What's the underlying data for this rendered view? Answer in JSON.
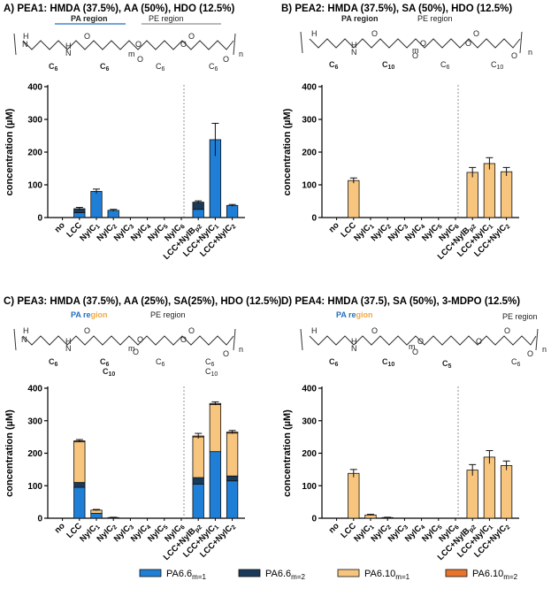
{
  "colors": {
    "PA6.6_m1": "#1f7fd6",
    "PA6.6_m2": "#1a3a5a",
    "PA6.10_m1": "#f7c57d",
    "PA6.10_m2": "#e9732b",
    "blue_text": "#1f6fbf",
    "orange_text": "#f2a840"
  },
  "legend": {
    "items": [
      {
        "key": "PA6.6_m1",
        "base": "PA6.6",
        "sub": "m=1"
      },
      {
        "key": "PA6.6_m2",
        "base": "PA6.6",
        "sub": "m=2"
      },
      {
        "key": "PA6.10_m1",
        "base": "PA6.10",
        "sub": "m=1"
      },
      {
        "key": "PA6.10_m2",
        "base": "PA6.10",
        "sub": "m=2"
      }
    ]
  },
  "category_labels": [
    {
      "base": "no"
    },
    {
      "base": "LCC"
    },
    {
      "base": "NylC",
      "sub": "1"
    },
    {
      "base": "NylC",
      "sub": "2"
    },
    {
      "base": "NylC",
      "sub": "3"
    },
    {
      "base": "NylC",
      "sub": "4"
    },
    {
      "base": "NylC",
      "sub": "5"
    },
    {
      "base": "NylC",
      "sub": "6"
    },
    {
      "base": "LCC+NylB",
      "sub": "p2"
    },
    {
      "base": "LCC+NylC",
      "sub": "1"
    },
    {
      "base": "LCC+NylC",
      "sub": "2"
    }
  ],
  "chart_data": [
    {
      "type": "bar",
      "stacked": true,
      "title": "A) PEA1: HMDA (37.5%), AA (50%), HDO (12.5%)",
      "structure": {
        "region_left": "PA region",
        "region_left_color": "blue",
        "region_right": "PE region",
        "labels": [
          "C6",
          "C6",
          "C6",
          "C6",
          "m",
          "n"
        ]
      },
      "ylabel": "concentration (µM)",
      "ylim": [
        0,
        400
      ],
      "yticks": [
        0,
        100,
        200,
        300,
        400
      ],
      "categories": [
        "no",
        "LCC",
        "NylC1",
        "NylC2",
        "NylC3",
        "NylC4",
        "NylC5",
        "NylC6",
        "LCC+NylBp2",
        "LCC+NylC1",
        "LCC+NylC2"
      ],
      "series": [
        {
          "name": "PA6.6m=1",
          "key": "PA6.6_m1",
          "values": [
            0,
            15,
            80,
            22,
            0,
            0,
            0,
            0,
            25,
            238,
            37
          ]
        },
        {
          "name": "PA6.6m=2",
          "key": "PA6.6_m2",
          "values": [
            0,
            12,
            0,
            0,
            0,
            0,
            0,
            0,
            22,
            0,
            0
          ]
        },
        {
          "name": "PA6.10m=1",
          "key": "PA6.10_m1",
          "values": [
            0,
            0,
            0,
            0,
            0,
            0,
            0,
            0,
            0,
            0,
            0
          ]
        },
        {
          "name": "PA6.10m=2",
          "key": "PA6.10_m2",
          "values": [
            0,
            0,
            0,
            0,
            0,
            0,
            0,
            0,
            0,
            0,
            0
          ]
        }
      ],
      "errors": [
        0,
        4,
        7,
        3,
        0,
        0,
        0,
        0,
        4,
        50,
        3
      ],
      "divider_after": 7
    },
    {
      "type": "bar",
      "stacked": true,
      "title": "B) PEA2: HMDA (37.5%), SA (50%), HDO (12.5%)",
      "structure": {
        "region_left": "PA region",
        "region_left_color": "orange",
        "region_right": "PE region",
        "labels": [
          "C6",
          "C10",
          "C6",
          "C10",
          "m",
          "n"
        ]
      },
      "ylabel": "concentration (µM)",
      "ylim": [
        0,
        400
      ],
      "yticks": [
        0,
        100,
        200,
        300,
        400
      ],
      "categories": [
        "no",
        "LCC",
        "NylC1",
        "NylC2",
        "NylC3",
        "NylC4",
        "NylC5",
        "NylC6",
        "LCC+NylBp2",
        "LCC+NylC1",
        "LCC+NylC2"
      ],
      "series": [
        {
          "name": "PA6.6m=1",
          "key": "PA6.6_m1",
          "values": [
            0,
            0,
            0,
            0,
            0,
            0,
            0,
            0,
            0,
            0,
            0
          ]
        },
        {
          "name": "PA6.6m=2",
          "key": "PA6.6_m2",
          "values": [
            0,
            0,
            0,
            0,
            0,
            0,
            0,
            0,
            0,
            0,
            0
          ]
        },
        {
          "name": "PA6.10m=1",
          "key": "PA6.10_m1",
          "values": [
            0,
            113,
            0,
            0,
            0,
            0,
            0,
            0,
            138,
            165,
            140
          ]
        },
        {
          "name": "PA6.10m=2",
          "key": "PA6.10_m2",
          "values": [
            0,
            0,
            0,
            0,
            0,
            0,
            0,
            0,
            0,
            0,
            0
          ]
        }
      ],
      "errors": [
        0,
        8,
        0,
        0,
        0,
        0,
        0,
        0,
        15,
        18,
        13
      ],
      "divider_after": 7
    },
    {
      "type": "bar",
      "stacked": true,
      "title": "C) PEA3: HMDA (37.5%), AA (25%), SA(25%), HDO (12.5%)",
      "structure": {
        "region_left": "PA region",
        "region_left_color": "mixed",
        "region_right": "PE region",
        "labels": [
          "C6",
          "C6",
          "C10",
          "C6",
          "C6",
          "C10",
          "m",
          "n"
        ]
      },
      "ylabel": "concentration (µM)",
      "ylim": [
        0,
        400
      ],
      "yticks": [
        0,
        100,
        200,
        300,
        400
      ],
      "categories": [
        "no",
        "LCC",
        "NylC1",
        "NylC2",
        "NylC3",
        "NylC4",
        "NylC5",
        "NylC6",
        "LCC+NylBp2",
        "LCC+NylC1",
        "LCC+NylC2"
      ],
      "series": [
        {
          "name": "PA6.6m=1",
          "key": "PA6.6_m1",
          "values": [
            0,
            95,
            15,
            2,
            0,
            0,
            0,
            0,
            105,
            205,
            115
          ]
        },
        {
          "name": "PA6.6m=2",
          "key": "PA6.6_m2",
          "values": [
            0,
            15,
            0,
            0,
            0,
            0,
            0,
            0,
            20,
            0,
            15
          ]
        },
        {
          "name": "PA6.10m=1",
          "key": "PA6.10_m1",
          "values": [
            0,
            125,
            10,
            0,
            0,
            0,
            0,
            0,
            125,
            145,
            132
          ]
        },
        {
          "name": "PA6.10m=2",
          "key": "PA6.10_m2",
          "values": [
            0,
            3,
            0,
            0,
            0,
            0,
            0,
            0,
            3,
            3,
            3
          ]
        }
      ],
      "errors": [
        0,
        4,
        2,
        1,
        0,
        0,
        0,
        0,
        8,
        5,
        5
      ],
      "divider_after": 7
    },
    {
      "type": "bar",
      "stacked": true,
      "title": "D) PEA4: HMDA (37.5), SA (50%), 3-MDPO (12.5%)",
      "structure": {
        "region_left": "PA region",
        "region_left_color": "mixed",
        "region_right": "PE region",
        "labels": [
          "C6",
          "C10",
          "C5",
          "C6",
          "m",
          "n"
        ]
      },
      "ylabel": "concentration (µM)",
      "ylim": [
        0,
        400
      ],
      "yticks": [
        0,
        100,
        200,
        300,
        400
      ],
      "categories": [
        "no",
        "LCC",
        "NylC1",
        "NylC2",
        "NylC3",
        "NylC4",
        "NylC5",
        "NylC6",
        "LCC+NylBp2",
        "LCC+NylC1",
        "LCC+NylC2"
      ],
      "series": [
        {
          "name": "PA6.6m=1",
          "key": "PA6.6_m1",
          "values": [
            0,
            0,
            0,
            0,
            0,
            0,
            0,
            0,
            0,
            0,
            0
          ]
        },
        {
          "name": "PA6.6m=2",
          "key": "PA6.6_m2",
          "values": [
            0,
            0,
            0,
            0,
            0,
            0,
            0,
            0,
            0,
            0,
            0
          ]
        },
        {
          "name": "PA6.10m=1",
          "key": "PA6.10_m1",
          "values": [
            0,
            138,
            10,
            2,
            0,
            0,
            0,
            0,
            148,
            188,
            162
          ]
        },
        {
          "name": "PA6.10m=2",
          "key": "PA6.10_m2",
          "values": [
            0,
            0,
            0,
            0,
            0,
            0,
            0,
            0,
            0,
            0,
            0
          ]
        }
      ],
      "errors": [
        0,
        12,
        2,
        1,
        0,
        0,
        0,
        0,
        17,
        20,
        14
      ],
      "divider_after": 7
    }
  ]
}
